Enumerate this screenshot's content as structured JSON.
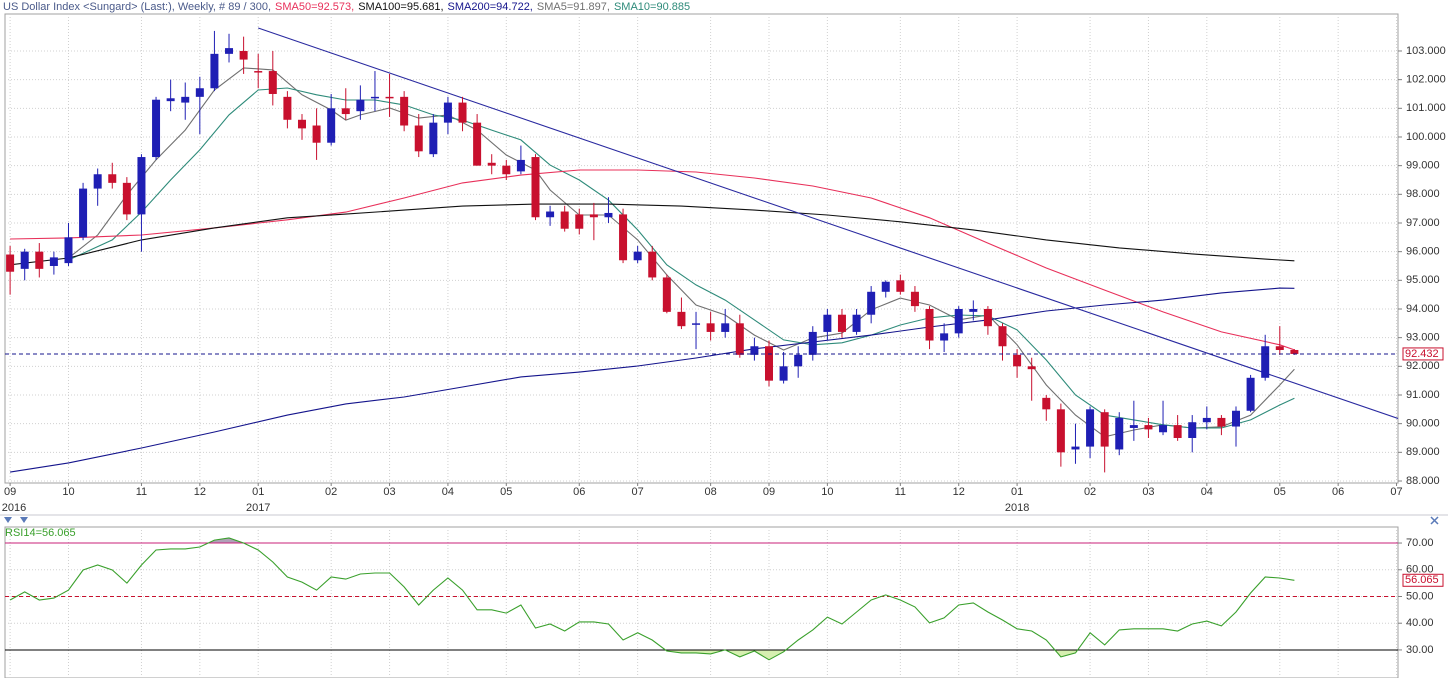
{
  "chart_data": [
    {
      "type": "candlestick",
      "header": [
        {
          "text": "US Dollar Index <Sungard> (Last:), Weekly, # 89 / 300,",
          "color": "#4a5a8a"
        },
        {
          "text": "SMA50=92.573,",
          "color": "#e8305a"
        },
        {
          "text": "SMA100=95.681,",
          "color": "#111111"
        },
        {
          "text": "SMA200=94.722,",
          "color": "#14148c"
        },
        {
          "text": "SMA5=91.897,",
          "color": "#707070"
        },
        {
          "text": "SMA10=90.885",
          "color": "#2e8b7a"
        }
      ],
      "up_color": "#1f1fb4",
      "down_color": "#c8102e",
      "open": [
        95.9,
        95.4,
        96.0,
        95.5,
        95.6,
        96.5,
        98.2,
        98.7,
        98.4,
        97.3,
        99.3,
        101.25,
        101.2,
        101.4,
        101.7,
        102.9,
        103.0,
        102.3,
        102.3,
        101.4,
        100.6,
        100.4,
        99.8,
        101.0,
        100.9,
        101.35,
        101.4,
        101.4,
        100.4,
        99.4,
        100.5,
        101.2,
        100.5,
        99.1,
        99.0,
        98.8,
        99.3,
        97.2,
        97.4,
        97.3,
        97.3,
        97.2,
        97.3,
        95.7,
        96.0,
        95.1,
        93.9,
        93.45,
        93.5,
        93.2,
        93.5,
        92.4,
        92.7,
        91.5,
        92.0,
        92.4,
        93.2,
        93.8,
        93.2,
        93.8,
        94.6,
        95.0,
        94.6,
        94.0,
        92.9,
        93.15,
        93.9,
        94.0,
        93.4,
        92.4,
        92.0,
        90.9,
        90.5,
        89.1,
        89.2,
        90.4,
        89.1,
        89.85,
        89.95,
        89.7,
        89.95,
        89.5,
        90.05,
        90.2,
        89.9,
        90.45,
        91.6,
        92.7,
        92.57
      ],
      "high": [
        96.2,
        96.1,
        96.3,
        96.0,
        97.0,
        98.4,
        98.9,
        99.1,
        98.6,
        99.4,
        101.4,
        102.0,
        101.9,
        102.1,
        103.7,
        103.6,
        103.5,
        102.9,
        103.0,
        101.6,
        100.8,
        101.0,
        101.5,
        101.7,
        101.8,
        102.3,
        102.2,
        101.6,
        100.8,
        100.8,
        101.4,
        101.4,
        100.8,
        99.4,
        99.2,
        99.7,
        99.4,
        97.6,
        97.6,
        97.5,
        97.7,
        97.9,
        97.5,
        96.2,
        96.2,
        95.2,
        94.4,
        93.9,
        93.9,
        94.0,
        93.8,
        93.0,
        92.9,
        92.5,
        92.7,
        93.4,
        94.0,
        94.0,
        94.0,
        94.8,
        95.0,
        95.2,
        94.8,
        94.1,
        93.5,
        94.1,
        94.3,
        94.1,
        93.5,
        92.6,
        92.3,
        91.0,
        90.7,
        90.0,
        90.6,
        90.5,
        90.4,
        90.8,
        90.2,
        90.8,
        90.3,
        90.3,
        90.6,
        90.3,
        90.6,
        91.7,
        93.1,
        93.4,
        92.6
      ],
      "low": [
        94.5,
        95.0,
        95.1,
        95.2,
        95.5,
        96.4,
        97.6,
        98.2,
        97.1,
        96.0,
        99.2,
        100.9,
        100.6,
        100.1,
        101.6,
        102.6,
        102.2,
        101.7,
        101.1,
        100.3,
        99.9,
        99.2,
        99.7,
        100.6,
        100.6,
        100.9,
        100.7,
        100.2,
        99.3,
        99.3,
        100.1,
        100.2,
        99.0,
        98.7,
        98.5,
        98.7,
        97.1,
        96.9,
        96.7,
        96.6,
        96.4,
        97.0,
        95.6,
        95.6,
        95.0,
        93.85,
        93.3,
        92.6,
        92.9,
        93.0,
        92.3,
        92.2,
        91.3,
        91.4,
        91.6,
        92.2,
        92.9,
        93.0,
        93.1,
        93.5,
        94.4,
        94.5,
        93.9,
        92.6,
        92.5,
        93.0,
        93.6,
        93.1,
        92.2,
        91.6,
        90.8,
        90.1,
        88.5,
        88.6,
        88.8,
        88.3,
        88.9,
        89.4,
        89.5,
        89.6,
        89.4,
        89.0,
        89.8,
        89.6,
        89.2,
        90.4,
        91.5,
        92.4,
        92.4
      ],
      "close": [
        95.3,
        96.0,
        95.4,
        95.8,
        96.5,
        98.2,
        98.7,
        98.4,
        97.3,
        99.3,
        101.3,
        101.35,
        101.4,
        101.7,
        102.9,
        103.1,
        102.7,
        102.25,
        101.5,
        100.6,
        100.3,
        99.8,
        101.0,
        100.8,
        101.3,
        101.4,
        101.35,
        100.4,
        99.5,
        100.5,
        101.2,
        100.5,
        99.0,
        99.0,
        98.7,
        99.2,
        97.2,
        97.4,
        96.8,
        96.8,
        97.2,
        97.35,
        95.7,
        96.0,
        95.1,
        93.9,
        93.4,
        93.5,
        93.2,
        93.5,
        92.4,
        92.7,
        91.5,
        92.0,
        92.4,
        93.2,
        93.8,
        93.2,
        93.8,
        94.6,
        94.95,
        94.6,
        94.1,
        92.9,
        93.15,
        94.0,
        94.0,
        93.4,
        92.7,
        92.0,
        91.9,
        90.5,
        89.0,
        89.2,
        90.5,
        89.2,
        90.2,
        89.95,
        89.8,
        89.95,
        89.5,
        90.05,
        90.2,
        89.9,
        90.45,
        91.6,
        92.7,
        92.57,
        92.432
      ],
      "series": [
        {
          "name": "SMA5",
          "color": "#707070",
          "x": [
            4,
            6,
            8,
            10,
            12,
            14,
            16,
            18,
            20,
            22,
            23,
            24,
            26,
            28,
            30,
            32,
            34,
            36,
            37,
            39,
            41,
            43,
            45,
            47,
            49,
            51,
            53,
            55,
            57,
            59,
            61,
            63,
            65,
            67,
            69,
            71,
            73,
            75,
            77,
            79,
            81,
            83,
            85,
            87,
            88
          ],
          "values": [
            95.78,
            96.58,
            97.98,
            99.2,
            100.24,
            101.64,
            102.41,
            102.34,
            101.47,
            100.94,
            100.59,
            100.77,
            101.01,
            100.66,
            100.77,
            100.24,
            99.37,
            98.85,
            98.15,
            97.28,
            97.28,
            96.41,
            95.19,
            94.14,
            93.79,
            93.09,
            92.57,
            92.99,
            93.16,
            93.97,
            94.38,
            94.14,
            93.62,
            93.79,
            92.75,
            91.35,
            90.3,
            89.54,
            89.78,
            89.96,
            89.85,
            89.89,
            90.3,
            91.35,
            91.897
          ]
        },
        {
          "name": "SMA10",
          "color": "#2e8b7a",
          "x": [
            4,
            7,
            9,
            11,
            13,
            15,
            17,
            19,
            21,
            23,
            25,
            27,
            29,
            31,
            33,
            35,
            37,
            39,
            41,
            43,
            45,
            47,
            49,
            51,
            53,
            55,
            57,
            59,
            61,
            63,
            65,
            67,
            69,
            71,
            73,
            75,
            77,
            79,
            81,
            83,
            85,
            87,
            88
          ],
          "values": [
            95.71,
            96.41,
            97.38,
            98.5,
            99.55,
            100.77,
            101.64,
            101.71,
            101.47,
            101.29,
            101.29,
            101.12,
            100.77,
            100.59,
            100.24,
            99.9,
            99.02,
            98.5,
            97.8,
            96.76,
            95.54,
            94.84,
            94.31,
            93.62,
            92.92,
            92.75,
            92.82,
            93.09,
            93.44,
            93.69,
            93.79,
            93.76,
            93.27,
            92.22,
            91.0,
            90.3,
            90.13,
            89.96,
            89.85,
            89.85,
            90.13,
            90.65,
            90.885
          ]
        },
        {
          "name": "SMA50",
          "color": "#e8305a",
          "x": [
            0,
            4,
            9,
            14,
            19,
            23,
            27,
            31,
            35,
            39,
            43,
            47,
            51,
            55,
            59,
            63,
            67,
            71,
            75,
            79,
            83,
            87,
            88
          ],
          "values": [
            96.44,
            96.48,
            96.58,
            96.83,
            97.11,
            97.38,
            97.87,
            98.4,
            98.67,
            98.85,
            98.85,
            98.78,
            98.57,
            98.29,
            97.87,
            97.18,
            96.3,
            95.43,
            94.66,
            93.9,
            93.2,
            92.75,
            92.573
          ]
        },
        {
          "name": "SMA100",
          "color": "#111111",
          "x": [
            0,
            4,
            9,
            14,
            19,
            23,
            27,
            31,
            36,
            41,
            46,
            51,
            56,
            61,
            66,
            71,
            76,
            81,
            86,
            88
          ],
          "values": [
            95.54,
            95.78,
            96.41,
            96.83,
            97.18,
            97.31,
            97.45,
            97.59,
            97.66,
            97.66,
            97.59,
            97.45,
            97.28,
            97.04,
            96.76,
            96.41,
            96.13,
            95.92,
            95.74,
            95.681
          ]
        },
        {
          "name": "SMA200",
          "color": "#14148c",
          "x": [
            0,
            4,
            9,
            14,
            19,
            23,
            27,
            31,
            35,
            39,
            43,
            47,
            51,
            55,
            59,
            63,
            67,
            71,
            75,
            79,
            83,
            87,
            88
          ],
          "values": [
            88.31,
            88.63,
            89.15,
            89.71,
            90.3,
            90.69,
            90.93,
            91.28,
            91.63,
            91.8,
            92.01,
            92.29,
            92.61,
            92.85,
            93.09,
            93.37,
            93.62,
            93.93,
            94.14,
            94.31,
            94.56,
            94.73,
            94.722
          ]
        }
      ],
      "trendline": {
        "x": [
          17,
          95.1
        ],
        "values": [
          103.8,
          90.18
        ],
        "color": "#2a2aa0"
      },
      "last_price": 92.432,
      "last_color": "#c8102e",
      "last_line_color": "#14148c",
      "xlim": [
        -0.35,
        95.1
      ],
      "xticks": [
        {
          "value": 0,
          "label": "09"
        },
        {
          "value": 4,
          "label": "10"
        },
        {
          "value": 9,
          "label": "11"
        },
        {
          "value": 13,
          "label": "12"
        },
        {
          "value": 17,
          "label": "01"
        },
        {
          "value": 22,
          "label": "02"
        },
        {
          "value": 26,
          "label": "03"
        },
        {
          "value": 30,
          "label": "04"
        },
        {
          "value": 34,
          "label": "05"
        },
        {
          "value": 39,
          "label": "06"
        },
        {
          "value": 43,
          "label": "07"
        },
        {
          "value": 48,
          "label": "08"
        },
        {
          "value": 52,
          "label": "09"
        },
        {
          "value": 56,
          "label": "10"
        },
        {
          "value": 61,
          "label": "11"
        },
        {
          "value": 65,
          "label": "12"
        },
        {
          "value": 69,
          "label": "01"
        },
        {
          "value": 74,
          "label": "02"
        },
        {
          "value": 78,
          "label": "03"
        },
        {
          "value": 82,
          "label": "04"
        },
        {
          "value": 87,
          "label": "05"
        },
        {
          "value": 91,
          "label": "06"
        },
        {
          "value": 95,
          "label": "07"
        }
      ],
      "year_labels": [
        {
          "value": 0,
          "label": "2016"
        },
        {
          "value": 17,
          "label": "2017"
        },
        {
          "value": 69,
          "label": "2018"
        }
      ],
      "ylim": [
        87.93,
        104.29
      ],
      "yticks": [
        {
          "value": 88,
          "label": "88.000"
        },
        {
          "value": 89,
          "label": "89.000"
        },
        {
          "value": 90,
          "label": "90.000"
        },
        {
          "value": 91,
          "label": "91.000"
        },
        {
          "value": 92,
          "label": "92.000"
        },
        {
          "value": 93,
          "label": "93.000"
        },
        {
          "value": 94,
          "label": "94.000"
        },
        {
          "value": 95,
          "label": "95.000"
        },
        {
          "value": 96,
          "label": "96.000"
        },
        {
          "value": 97,
          "label": "97.000"
        },
        {
          "value": 98,
          "label": "98.000"
        },
        {
          "value": 99,
          "label": "99.000"
        },
        {
          "value": 100,
          "label": "100.000"
        },
        {
          "value": 101,
          "label": "101.000"
        },
        {
          "value": 102,
          "label": "102.000"
        },
        {
          "value": 103,
          "label": "103.000"
        }
      ],
      "grid": true
    },
    {
      "type": "line",
      "label": "RSI14=56.065",
      "color": "#3aa02c",
      "values": [
        48.7,
        51.7,
        48.7,
        49.4,
        52.4,
        59.9,
        61.8,
        59.9,
        55.0,
        61.8,
        67.4,
        67.8,
        67.8,
        68.5,
        71.1,
        71.9,
        70.0,
        67.4,
        62.9,
        57.3,
        55.4,
        52.4,
        57.3,
        56.5,
        58.4,
        58.8,
        58.8,
        53.6,
        46.8,
        52.4,
        56.9,
        52.4,
        45.0,
        45.0,
        43.8,
        46.8,
        38.2,
        39.7,
        37.1,
        40.5,
        40.5,
        39.7,
        33.7,
        36.4,
        33.7,
        29.6,
        28.9,
        28.9,
        28.5,
        30.0,
        27.4,
        29.6,
        26.3,
        29.3,
        33.7,
        37.5,
        42.3,
        39.7,
        44.2,
        48.7,
        50.6,
        48.7,
        46.1,
        40.1,
        42.0,
        46.8,
        47.6,
        44.2,
        41.2,
        37.9,
        37.1,
        33.7,
        27.4,
        28.9,
        36.4,
        31.9,
        37.5,
        37.9,
        37.9,
        37.9,
        37.1,
        39.7,
        40.8,
        39.0,
        44.2,
        51.3,
        57.3,
        56.9,
        56.065
      ],
      "last_value": 56.065,
      "last_color": "#c8102e",
      "levels": [
        {
          "value": 70,
          "color": "#c8207a",
          "fill": "#b0a0b8"
        },
        {
          "value": 50,
          "color": "#c8102e",
          "dash": true
        },
        {
          "value": 30,
          "color": "#000000",
          "fill": "#d6efb0"
        }
      ],
      "xlim": [
        -0.35,
        95.1
      ],
      "ylim": [
        19.5,
        76
      ],
      "yticks": [
        {
          "value": 30,
          "label": "30.00"
        },
        {
          "value": 40,
          "label": "40.00"
        },
        {
          "value": 50,
          "label": "50.00"
        },
        {
          "value": 60,
          "label": "60.00"
        },
        {
          "value": 70,
          "label": "70.00"
        }
      ],
      "grid": true
    }
  ]
}
